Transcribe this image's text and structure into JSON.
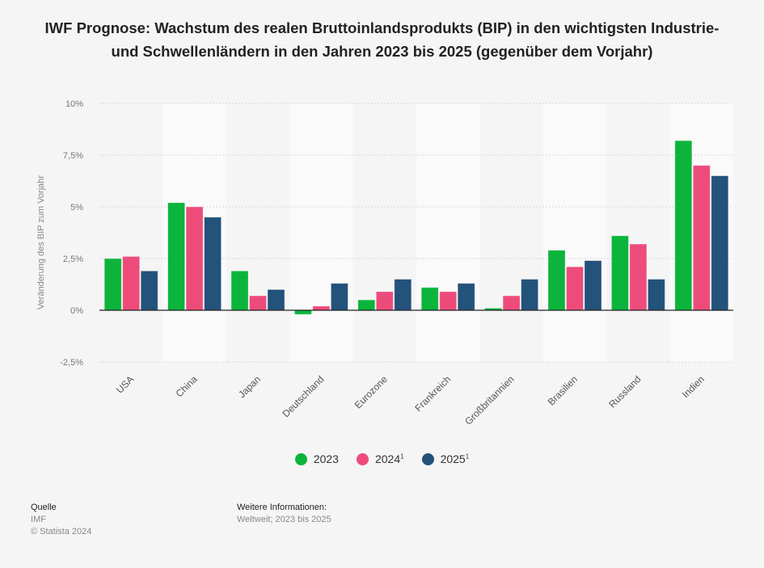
{
  "title": "IWF Prognose: Wachstum des realen Bruttoinlandsprodukts (BIP) in den wichtigsten Industrie- und Schwellenländern in den Jahren 2023 bis 2025 (gegenüber dem Vorjahr)",
  "chart_data": {
    "type": "bar",
    "title": "IWF Prognose: Wachstum des realen Bruttoinlandsprodukts (BIP) in den wichtigsten Industrie- und Schwellenländern in den Jahren 2023 bis 2025 (gegenüber dem Vorjahr)",
    "ylabel": "Veränderung des BIP zum Vorjahr",
    "xlabel": "",
    "ylim": [
      -2.5,
      10
    ],
    "yticks": [
      10,
      7.5,
      5,
      2.5,
      0,
      -2.5
    ],
    "ytick_labels": [
      "10%",
      "7,5%",
      "5%",
      "2,5%",
      "0%",
      "-2,5%"
    ],
    "grid": true,
    "legend_position": "bottom",
    "categories": [
      "USA",
      "China",
      "Japan",
      "Deutschland",
      "Eurozone",
      "Frankreich",
      "Großbritannien",
      "Brasilien",
      "Russland",
      "Indien"
    ],
    "series": [
      {
        "name": "2023",
        "sup": "",
        "color": "#0cb43c",
        "values": [
          2.5,
          5.2,
          1.9,
          -0.2,
          0.5,
          1.1,
          0.1,
          2.9,
          3.6,
          8.2
        ]
      },
      {
        "name": "2024",
        "sup": "1",
        "color": "#ed4c7b",
        "values": [
          2.6,
          5.0,
          0.7,
          0.2,
          0.9,
          0.9,
          0.7,
          2.1,
          3.2,
          7.0
        ]
      },
      {
        "name": "2025",
        "sup": "1",
        "color": "#23527a",
        "values": [
          1.9,
          4.5,
          1.0,
          1.3,
          1.5,
          1.3,
          1.5,
          2.4,
          1.5,
          6.5
        ]
      }
    ]
  },
  "footer": {
    "source_heading": "Quelle",
    "source": "IMF",
    "copyright": "© Statista 2024",
    "info_heading": "Weitere Informationen:",
    "info": "Weltweit; 2023 bis 2025"
  }
}
